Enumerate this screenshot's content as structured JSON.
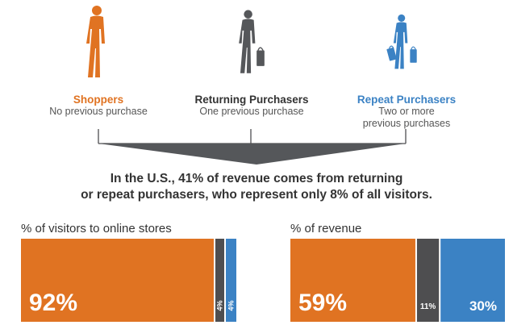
{
  "colors": {
    "orange": "#E07322",
    "gray": "#4E4E50",
    "blue": "#3B82C4",
    "text": "#333333"
  },
  "segments": [
    {
      "title": "Shoppers",
      "subtitle": [
        "No previous purchase"
      ],
      "color": "#E07322",
      "icon": "person-walking-icon"
    },
    {
      "title": "Returning Purchasers",
      "subtitle": [
        "One previous purchase"
      ],
      "color": "#55575A",
      "icon": "person-with-bag-icon"
    },
    {
      "title": "Repeat Purchasers",
      "subtitle": [
        "Two or more",
        "previous purchases"
      ],
      "color": "#3B82C4",
      "icon": "person-with-bags-icon"
    }
  ],
  "headline": {
    "line1": "In the U.S., 41% of revenue comes from returning",
    "line2": "or repeat purchasers, who represent only 8% of all visitors."
  },
  "chart_data": [
    {
      "type": "bar",
      "orientation": "stacked-horizontal",
      "title": "% of visitors to online stores",
      "categories": [
        "Shoppers",
        "Returning Purchasers",
        "Repeat Purchasers"
      ],
      "values": [
        92,
        4,
        4
      ],
      "labels": [
        "92%",
        "4%",
        "4%"
      ],
      "unit": "%"
    },
    {
      "type": "bar",
      "orientation": "stacked-horizontal",
      "title": "% of revenue",
      "categories": [
        "Shoppers",
        "Returning Purchasers",
        "Repeat Purchasers"
      ],
      "values": [
        59,
        11,
        30
      ],
      "labels": [
        "59%",
        "11%",
        "30%"
      ],
      "unit": "%"
    }
  ]
}
